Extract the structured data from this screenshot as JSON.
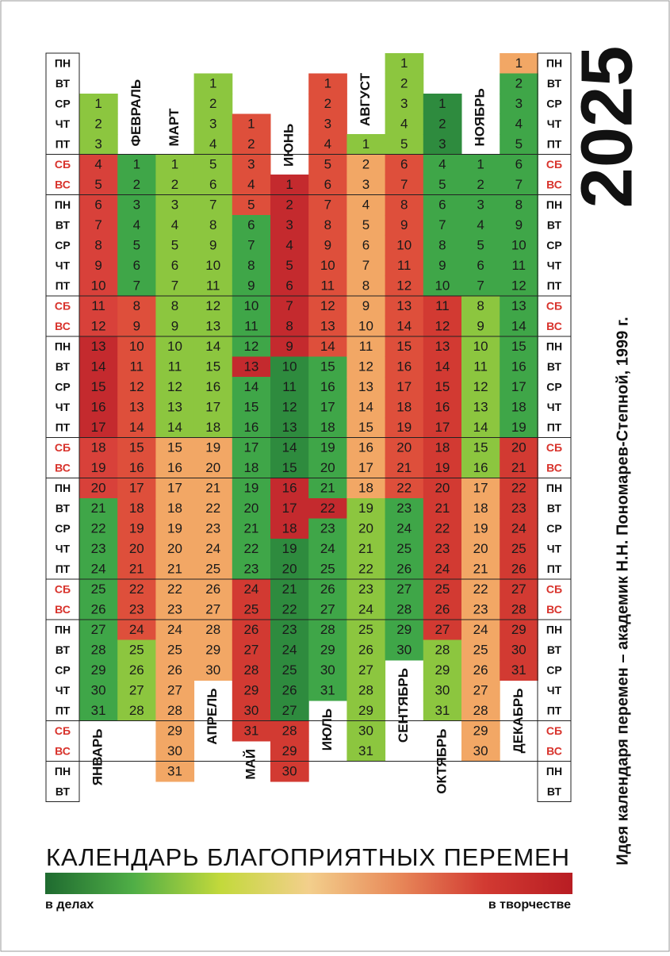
{
  "year": "2025",
  "weekdays": [
    "ПН",
    "ВТ",
    "СР",
    "ЧТ",
    "ПТ",
    "СБ",
    "ВС",
    "ПН",
    "ВТ",
    "СР",
    "ЧТ",
    "ПТ",
    "СБ",
    "ВС",
    "ПН",
    "ВТ",
    "СР",
    "ЧТ",
    "ПТ",
    "СБ",
    "ВС",
    "ПН",
    "ВТ",
    "СР",
    "ЧТ",
    "ПТ",
    "СБ",
    "ВС",
    "ПН",
    "ВТ",
    "СР",
    "ЧТ",
    "ПТ",
    "СБ",
    "ВС",
    "ПН",
    "ВТ"
  ],
  "months": [
    {
      "name": "ЯНВАРЬ",
      "segments": [
        {
          "color": "#8cc63f",
          "days": [
            1,
            2,
            3
          ]
        },
        {
          "color": "#d8413a",
          "days": [
            4,
            5,
            6,
            7,
            8,
            9,
            10,
            11,
            12
          ]
        },
        {
          "color": "#c42a2e",
          "days": [
            13,
            14,
            15,
            16,
            17
          ]
        },
        {
          "color": "#d8413a",
          "days": [
            18,
            19,
            20
          ]
        },
        {
          "color": "#3fa648",
          "days": [
            21,
            22,
            23,
            24,
            25,
            26,
            27,
            28,
            29,
            30,
            31
          ]
        }
      ]
    },
    {
      "name": "ФЕВРАЛЬ",
      "segments": [
        {
          "color": "#3fa648",
          "days": [
            1,
            2,
            3,
            4,
            5,
            6,
            7
          ]
        },
        {
          "color": "#de4f3b",
          "days": [
            8,
            9,
            10,
            11,
            12,
            13,
            14,
            15,
            16,
            17,
            18,
            19,
            20,
            21,
            22,
            23,
            24
          ]
        },
        {
          "color": "#8cc63f",
          "days": [
            25,
            26,
            27,
            28
          ]
        }
      ]
    },
    {
      "name": "МАРТ",
      "segments": [
        {
          "color": "#8cc63f",
          "days": [
            1,
            2,
            3,
            4,
            5,
            6,
            7,
            8,
            9,
            10,
            11,
            12,
            13,
            14
          ]
        },
        {
          "color": "#f2a765",
          "days": [
            15,
            16,
            17,
            18,
            19,
            20,
            21,
            22,
            23,
            24,
            25,
            26,
            27,
            28,
            29,
            30,
            31
          ]
        }
      ]
    },
    {
      "name": "АПРЕЛЬ",
      "segments": [
        {
          "color": "#8cc63f",
          "days": [
            1,
            2,
            3,
            4,
            5,
            6,
            7,
            8,
            9,
            10,
            11,
            12,
            13,
            14,
            15,
            16,
            17,
            18
          ]
        },
        {
          "color": "#f2a765",
          "days": [
            19,
            20,
            21,
            22,
            23,
            24,
            25,
            26,
            27,
            28,
            29,
            30
          ]
        }
      ]
    },
    {
      "name": "МАЙ",
      "segments": [
        {
          "color": "#de4f3b",
          "days": [
            1,
            2,
            3,
            4,
            5
          ]
        },
        {
          "color": "#3fa648",
          "days": [
            6,
            7,
            8,
            9,
            10,
            11,
            12
          ]
        },
        {
          "color": "#c42a2e",
          "days": [
            13
          ]
        },
        {
          "color": "#3fa648",
          "days": [
            14,
            15,
            16,
            17,
            18,
            19,
            20,
            21,
            22,
            23
          ]
        },
        {
          "color": "#d23a32",
          "days": [
            24,
            25,
            26,
            27,
            28,
            29,
            30,
            31
          ]
        }
      ]
    },
    {
      "name": "ИЮНЬ",
      "segments": [
        {
          "color": "#c42a2e",
          "days": [
            1,
            2,
            3,
            4,
            5,
            6,
            7,
            8,
            9
          ]
        },
        {
          "color": "#2e8b3e",
          "days": [
            10,
            11,
            12,
            13,
            14,
            15
          ]
        },
        {
          "color": "#c42a2e",
          "days": [
            16,
            17,
            18
          ]
        },
        {
          "color": "#2e8b3e",
          "days": [
            19,
            20,
            21,
            22,
            23,
            24,
            25,
            26,
            27
          ]
        },
        {
          "color": "#d23a32",
          "days": [
            28,
            29,
            30
          ]
        }
      ]
    },
    {
      "name": "ИЮЛЬ",
      "segments": [
        {
          "color": "#de4f3b",
          "days": [
            1,
            2,
            3,
            4,
            5,
            6,
            7,
            8,
            9,
            10,
            11,
            12,
            13,
            14
          ]
        },
        {
          "color": "#3fa648",
          "days": [
            15,
            16,
            17,
            18,
            19,
            20,
            21
          ]
        },
        {
          "color": "#c42a2e",
          "days": [
            22
          ]
        },
        {
          "color": "#3fa648",
          "days": [
            23,
            24,
            25,
            26,
            27,
            28,
            29,
            30,
            31
          ]
        }
      ]
    },
    {
      "name": "АВГУСТ",
      "segments": [
        {
          "color": "#8cc63f",
          "days": [
            1
          ]
        },
        {
          "color": "#f2a765",
          "days": [
            2,
            3,
            4,
            5,
            6,
            7,
            8,
            9,
            10,
            11,
            12,
            13,
            14,
            15,
            16,
            17,
            18
          ]
        },
        {
          "color": "#8cc63f",
          "days": [
            19,
            20,
            21,
            22,
            23,
            24,
            25,
            26,
            27,
            28,
            29,
            30,
            31
          ]
        }
      ]
    },
    {
      "name": "СЕНТЯБРЬ",
      "segments": [
        {
          "color": "#8cc63f",
          "days": [
            1,
            2,
            3,
            4,
            5
          ]
        },
        {
          "color": "#de4f3b",
          "days": [
            6,
            7,
            8,
            9,
            10,
            11,
            12,
            13,
            14,
            15,
            16,
            17,
            18,
            19,
            20,
            21,
            22
          ]
        },
        {
          "color": "#3fa648",
          "days": [
            23,
            24,
            25,
            26,
            27,
            28,
            29,
            30
          ]
        }
      ]
    },
    {
      "name": "ОКТЯБРЬ",
      "segments": [
        {
          "color": "#2e8b3e",
          "days": [
            1,
            2,
            3
          ]
        },
        {
          "color": "#3fa648",
          "days": [
            4,
            5,
            6,
            7,
            8,
            9,
            10
          ]
        },
        {
          "color": "#d23a32",
          "days": [
            11,
            12,
            13,
            14,
            15,
            16,
            17,
            18,
            19,
            20,
            21,
            22,
            23,
            24,
            25,
            26,
            27
          ]
        },
        {
          "color": "#8cc63f",
          "days": [
            28,
            29,
            30,
            31
          ]
        }
      ]
    },
    {
      "name": "НОЯБРЬ",
      "segments": [
        {
          "color": "#3fa648",
          "days": [
            1,
            2,
            3,
            4,
            5,
            6,
            7
          ]
        },
        {
          "color": "#8cc63f",
          "days": [
            8,
            9,
            10,
            11,
            12,
            13,
            14,
            15,
            16
          ]
        },
        {
          "color": "#f2a765",
          "days": [
            17,
            18,
            19,
            20,
            21,
            22,
            23,
            24,
            25,
            26,
            27,
            28,
            29,
            30
          ]
        }
      ]
    },
    {
      "name": "ДЕКАБРЬ",
      "segments": [
        {
          "color": "#f2a765",
          "days": [
            1
          ]
        },
        {
          "color": "#3fa648",
          "days": [
            2,
            3,
            4,
            5,
            6,
            7,
            8,
            9,
            10,
            11,
            12,
            13,
            14,
            15,
            16,
            17,
            18,
            19
          ]
        },
        {
          "color": "#d23a32",
          "days": [
            20,
            21,
            22,
            23,
            24,
            25,
            26,
            27,
            28,
            29,
            30,
            31
          ]
        }
      ]
    }
  ],
  "legend": {
    "title": "КАЛЕНДАРЬ БЛАГОПРИЯТНЫХ ПЕРЕМЕН",
    "gradient": [
      "#1f6b30",
      "#4fae46",
      "#c3d93b",
      "#f3cf8c",
      "#e88a5a",
      "#d23a32",
      "#b81d23"
    ],
    "left": "в делах",
    "right": "в творчестве"
  },
  "credit": "Идея календаря перемен – академик Н.Н. Пономарев-Степной, 1999 г."
}
